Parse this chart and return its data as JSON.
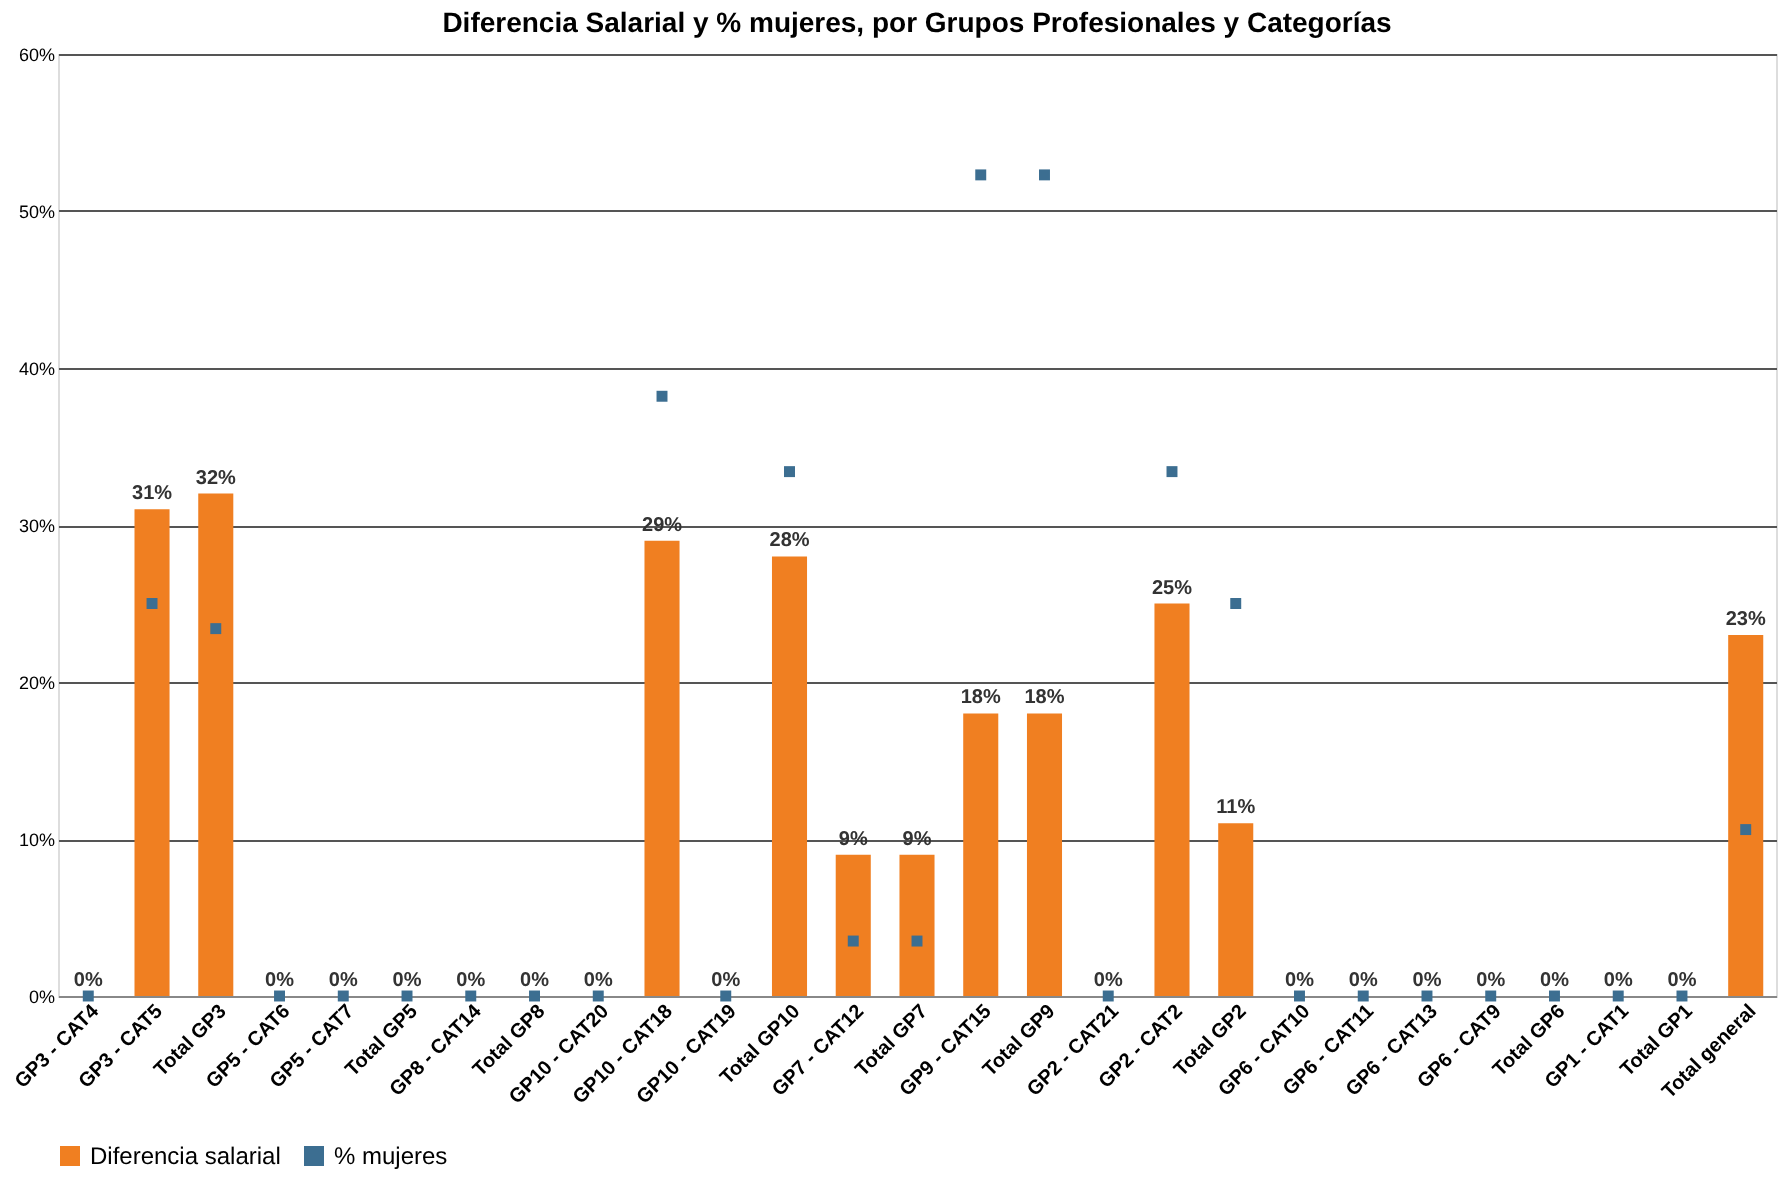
{
  "chart_data": {
    "type": "bar",
    "title": "Diferencia Salarial y % mujeres, por Grupos Profesionales y Categorías",
    "categories": [
      "GP3 - CAT4",
      "GP3 - CAT5",
      "Total GP3",
      "GP5 - CAT6",
      "GP5 - CAT7",
      "Total GP5",
      "GP8 - CAT14",
      "Total GP8",
      "GP10 - CAT20",
      "GP10 - CAT18",
      "GP10 - CAT19",
      "Total GP10",
      "GP7 - CAT12",
      "Total GP7",
      "GP9 - CAT15",
      "Total GP9",
      "GP2 - CAT21",
      "GP2 - CAT2",
      "Total GP2",
      "GP6 - CAT10",
      "GP6 - CAT11",
      "GP6 - CAT13",
      "GP6 - CAT9",
      "Total GP6",
      "GP1 - CAT1",
      "Total GP1",
      "Total general"
    ],
    "series": [
      {
        "name": "Diferencia salarial",
        "color": "#f07f21",
        "values": [
          0,
          31,
          32,
          0,
          0,
          0,
          0,
          0,
          0,
          29,
          0,
          28,
          9,
          9,
          18,
          18,
          0,
          25,
          11,
          0,
          0,
          0,
          0,
          0,
          0,
          0,
          23
        ],
        "value_labels": [
          "0%",
          "31%",
          "32%",
          "0%",
          "0%",
          "0%",
          "0%",
          "0%",
          "0%",
          "29%",
          "0%",
          "28%",
          "9%",
          "9%",
          "18%",
          "18%",
          "0%",
          "25%",
          "11%",
          "0%",
          "0%",
          "0%",
          "0%",
          "0%",
          "0%",
          "0%",
          "23%"
        ]
      },
      {
        "name": "% mujeres",
        "type": "scatter",
        "color": "#3c6e91",
        "marker": "square",
        "values": [
          0,
          25,
          23.4,
          0,
          0,
          0,
          0,
          0,
          0,
          38.2,
          0,
          33.4,
          3.5,
          3.5,
          52.3,
          52.3,
          0,
          33.4,
          25,
          0,
          0,
          0,
          0,
          0,
          0,
          0,
          10.6
        ]
      }
    ],
    "ylim": [
      0,
      60
    ],
    "yticks": [
      {
        "value": 0,
        "label": "0%"
      },
      {
        "value": 10,
        "label": "10%"
      },
      {
        "value": 20,
        "label": "20%"
      },
      {
        "value": 30,
        "label": "30%"
      },
      {
        "value": 40,
        "label": "40%"
      },
      {
        "value": 50,
        "label": "50%"
      },
      {
        "value": 60,
        "label": "60%"
      }
    ],
    "grid": "y",
    "legend": "bottom"
  }
}
